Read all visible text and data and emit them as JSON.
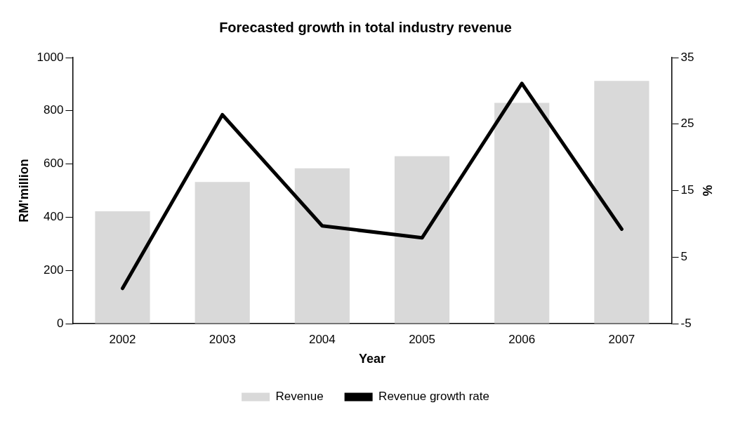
{
  "chart_data": {
    "type": "bar",
    "title": "Forecasted growth in total industry revenue",
    "xlabel": "Year",
    "ylabel": "RM'million",
    "y2label": "%",
    "categories": [
      "2002",
      "2003",
      "2004",
      "2005",
      "2006",
      "2007"
    ],
    "series": [
      {
        "name": "Revenue",
        "color": "#d9d9d9",
        "values": [
          422,
          532,
          584,
          629,
          830,
          912
        ]
      },
      {
        "name": "Revenue growth rate",
        "type": "line",
        "axis": "y2",
        "color": "#000000",
        "values": [
          0.3,
          26.4,
          9.7,
          7.9,
          31.1,
          9.2
        ]
      }
    ],
    "ylim": [
      0,
      1000
    ],
    "yticks": [
      0,
      200,
      400,
      600,
      800,
      1000
    ],
    "y2lim": [
      -5,
      35
    ],
    "y2ticks": [
      -5,
      5,
      15,
      25,
      35
    ],
    "grid": false,
    "legend": "bottom",
    "marker": "none",
    "line_style": "solid"
  }
}
